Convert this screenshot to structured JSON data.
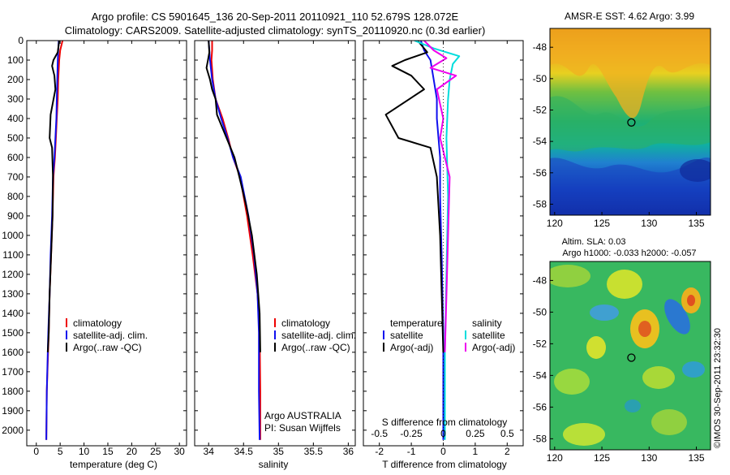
{
  "header": {
    "line1": "Argo profile: CS 5901645_136 20-Sep-2011 20110921_110 52.679S 128.072E",
    "line2": "Climatology: CARS2009. Satellite-adjusted climatology: synTS_20110920.nc (0.3d earlier)"
  },
  "colors": {
    "climatology": "#ee0000",
    "satellite": "#1010ee",
    "argo": "#000000",
    "satellite_salinity": "#00dddd",
    "argo_salinity": "#ee00ee",
    "circle": "#000000"
  },
  "chart_data": [
    {
      "type": "line",
      "panel": "temperature",
      "xlabel": "temperature (deg C)",
      "xlim": [
        -2,
        31.5
      ],
      "xticks": [
        "0",
        "5",
        "10",
        "15",
        "20",
        "25",
        "30"
      ],
      "ylim": [
        0,
        2080
      ],
      "yticks": [
        "0",
        "100",
        "200",
        "300",
        "400",
        "500",
        "600",
        "700",
        "800",
        "900",
        "1000",
        "1100",
        "1200",
        "1300",
        "1400",
        "1500",
        "1600",
        "1700",
        "1800",
        "1900",
        "2000"
      ],
      "legend": {
        "position": "center",
        "entries": [
          "climatology",
          "satellite-adj. clim.",
          "Argo(..raw -QC)"
        ]
      },
      "series": [
        {
          "key": "climatology",
          "color": "#ee0000",
          "x": [
            5.5,
            5.0,
            4.8,
            4.6,
            4.5,
            4.3,
            4.1,
            3.9,
            3.6,
            3.4,
            3.1,
            2.8,
            2.6,
            2.2,
            2.1
          ],
          "y": [
            0,
            50,
            100,
            200,
            300,
            400,
            500,
            600,
            700,
            900,
            1100,
            1300,
            1500,
            1800,
            2050
          ]
        },
        {
          "key": "satellite-adj. clim.",
          "color": "#1010ee",
          "x": [
            4.7,
            4.6,
            4.5,
            4.4,
            4.3,
            4.2,
            4.0,
            3.8,
            3.5,
            3.3,
            3.0,
            2.8,
            2.5,
            2.2,
            2.1
          ],
          "y": [
            0,
            50,
            100,
            200,
            300,
            400,
            500,
            600,
            700,
            900,
            1100,
            1300,
            1500,
            1800,
            2050
          ]
        },
        {
          "key": "Argo(..raw -QC)",
          "color": "#000000",
          "x": [
            4.8,
            4.5,
            3.6,
            3.3,
            3.8,
            4.0,
            3.0,
            2.8,
            3.3,
            3.5,
            3.4,
            3.1,
            2.8,
            2.6,
            2.4
          ],
          "y": [
            0,
            60,
            100,
            130,
            180,
            250,
            380,
            500,
            550,
            700,
            900,
            1100,
            1300,
            1500,
            1600
          ]
        }
      ]
    },
    {
      "type": "line",
      "panel": "salinity",
      "xlabel": "salinity",
      "xlim": [
        33.8,
        36.1
      ],
      "xticks": [
        "34",
        "34.5",
        "35",
        "35.5",
        "36"
      ],
      "ylim": [
        0,
        2080
      ],
      "legend": {
        "position": "center",
        "entries": [
          "climatology",
          "satellite-adj. clim.",
          "Argo(..raw -QC)"
        ]
      },
      "annotation": [
        "Argo AUSTRALIA",
        "PI: Susan Wijffels"
      ],
      "series": [
        {
          "key": "climatology",
          "color": "#ee0000",
          "x": [
            34.05,
            34.05,
            34.04,
            34.06,
            34.1,
            34.2,
            34.28,
            34.35,
            34.45,
            34.55,
            34.63,
            34.7,
            34.73,
            34.74,
            34.74
          ],
          "y": [
            0,
            50,
            100,
            200,
            300,
            400,
            500,
            600,
            700,
            900,
            1100,
            1300,
            1500,
            1800,
            2050
          ]
        },
        {
          "key": "satellite-adj. clim.",
          "color": "#1010ee",
          "x": [
            34.0,
            34.01,
            34.02,
            34.05,
            34.1,
            34.18,
            34.27,
            34.35,
            34.46,
            34.57,
            34.65,
            34.7,
            34.72,
            34.72,
            34.73
          ],
          "y": [
            0,
            50,
            100,
            200,
            300,
            400,
            500,
            600,
            700,
            900,
            1100,
            1300,
            1500,
            1800,
            2050
          ]
        },
        {
          "key": "Argo(..raw -QC)",
          "color": "#000000",
          "x": [
            34.0,
            34.01,
            33.99,
            33.97,
            34.02,
            34.05,
            34.1,
            34.12,
            34.2,
            34.28,
            34.37,
            34.44,
            34.54,
            34.62,
            34.69,
            34.73,
            34.74
          ],
          "y": [
            0,
            60,
            100,
            140,
            200,
            250,
            300,
            380,
            450,
            520,
            600,
            700,
            850,
            1000,
            1200,
            1400,
            1600
          ]
        }
      ]
    },
    {
      "type": "line",
      "panel": "difference",
      "xlabel": "T difference from climatology",
      "xlabel_top": "S difference from climatology",
      "xlim": [
        -2.5,
        2.5
      ],
      "xticks": [
        "-2",
        "-1",
        "0",
        "1",
        "2"
      ],
      "xticks_top": [
        "-0.5",
        "-0.25",
        "0",
        "0.25",
        "0.5"
      ],
      "ylim": [
        0,
        2080
      ],
      "legend": {
        "position": "center",
        "temperature_title": "temperature",
        "salinity_title": "salinity",
        "entries": [
          "satellite",
          "Argo(-adj)"
        ]
      },
      "series": [
        {
          "key": "temperature satellite",
          "color": "#1010ee",
          "x": [
            -0.7,
            -0.6,
            -0.4,
            -0.3,
            -0.2,
            -0.2,
            -0.1,
            -0.1,
            -0.05,
            0,
            0
          ],
          "y": [
            0,
            50,
            100,
            200,
            300,
            400,
            600,
            800,
            1100,
            1500,
            2050
          ]
        },
        {
          "key": "temperature Argo(-adj)",
          "color": "#000000",
          "x": [
            -0.8,
            -0.5,
            -1.2,
            -1.6,
            -1.0,
            -0.6,
            -1.8,
            -1.4,
            -0.4,
            -0.2,
            -0.1,
            0
          ],
          "y": [
            0,
            60,
            100,
            130,
            180,
            250,
            380,
            500,
            550,
            700,
            1000,
            1600
          ]
        },
        {
          "key": "salinity satellite",
          "color": "#00dddd",
          "x": [
            -0.9,
            -0.3,
            0.5,
            0.3,
            0.2,
            0.15,
            0.1,
            0.15,
            0.1,
            0.05,
            0.05
          ],
          "y": [
            0,
            40,
            80,
            120,
            200,
            300,
            500,
            800,
            1200,
            1600,
            2050
          ]
        },
        {
          "key": "salinity Argo(-adj)",
          "color": "#ee00ee",
          "x": [
            -0.6,
            -0.3,
            0.1,
            -0.4,
            0.4,
            -0.2,
            0.0,
            -0.1,
            0.2,
            0.05
          ],
          "y": [
            0,
            50,
            90,
            140,
            180,
            250,
            400,
            500,
            700,
            1600
          ]
        }
      ]
    },
    {
      "type": "heatmap",
      "panel": "sst-map",
      "title": "AMSR-E SST: 4.62 Argo: 3.99",
      "xlim": [
        119.5,
        136.5
      ],
      "ylim": [
        -58.7,
        -46.8
      ],
      "xticks": [
        "120",
        "125",
        "130",
        "135"
      ],
      "yticks": [
        "-48",
        "-50",
        "-52",
        "-54",
        "-56",
        "-58"
      ],
      "marker": {
        "lon": 128.07,
        "lat": -52.68
      }
    },
    {
      "type": "heatmap",
      "panel": "sla-map",
      "title": "Altim. SLA: 0.03",
      "subtitle": "Argo h1000: -0.033 h2000: -0.057",
      "xlim": [
        119.5,
        136.5
      ],
      "ylim": [
        -58.7,
        -46.8
      ],
      "xticks": [
        "120",
        "125",
        "130",
        "135"
      ],
      "yticks": [
        "-48",
        "-50",
        "-52",
        "-54",
        "-56",
        "-58"
      ],
      "marker": {
        "lon": 128.07,
        "lat": -52.68
      },
      "side_label": "©IMOS 30-Sep-2011 23:32:30"
    }
  ]
}
